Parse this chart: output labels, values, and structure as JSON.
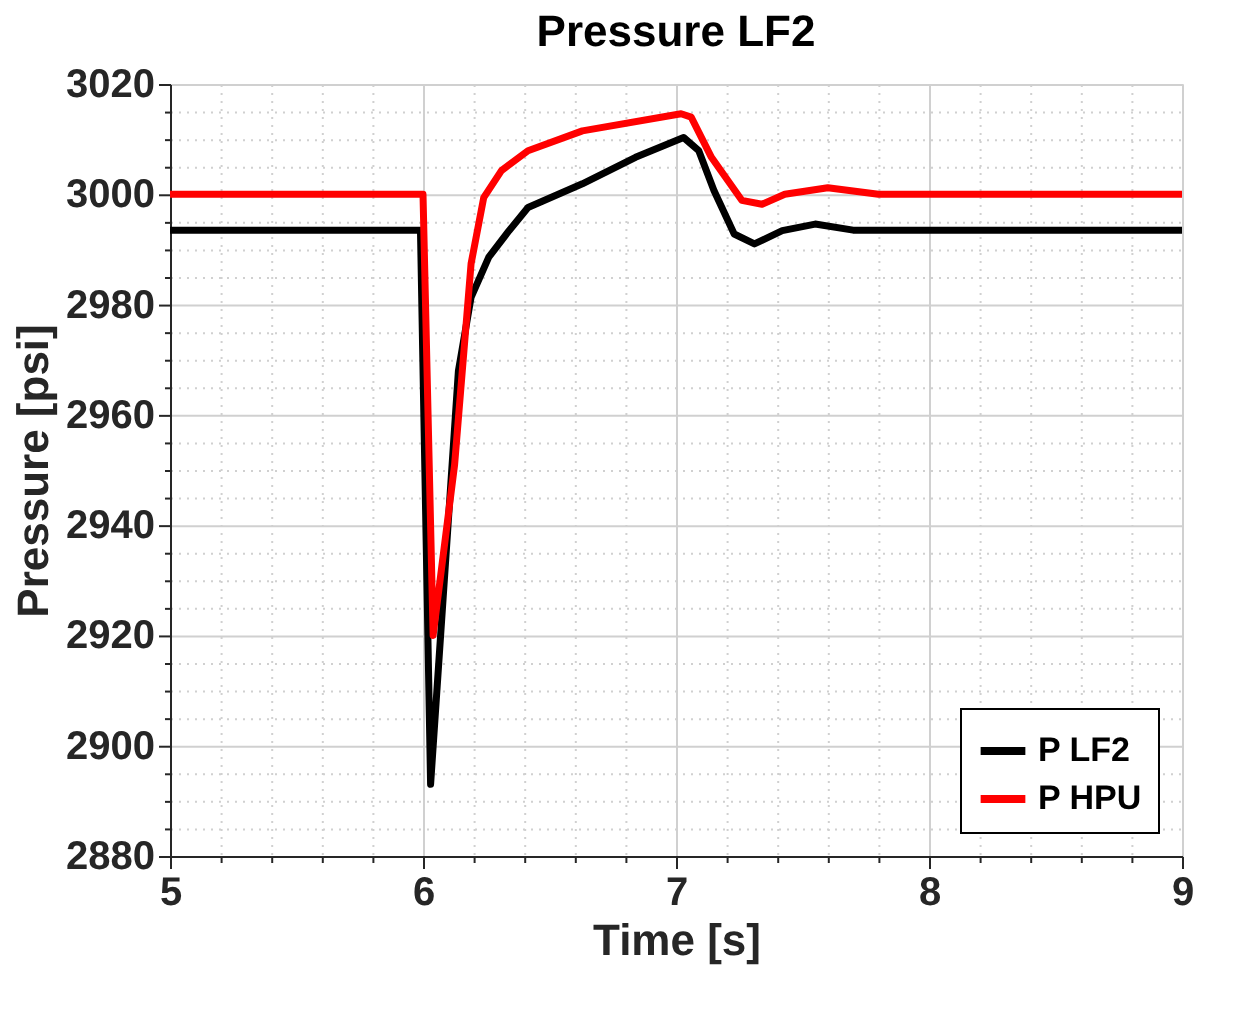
{
  "chart_data": {
    "type": "line",
    "title": "Pressure LF2",
    "xlabel": "Time [s]",
    "ylabel": "Pressure [psi]",
    "xlim": [
      5,
      9
    ],
    "ylim": [
      2880,
      3020
    ],
    "xticks": [
      5,
      {
        "value": 5.2,
        "label": null
      },
      {
        "value": 5.4,
        "label": null
      },
      {
        "value": 5.6,
        "label": null
      },
      {
        "value": 5.8,
        "label": null
      },
      6,
      {
        "value": 6.2,
        "label": null
      },
      {
        "value": 6.4,
        "label": null
      },
      {
        "value": 6.6,
        "label": null
      },
      {
        "value": 6.8,
        "label": null
      },
      7,
      {
        "value": 7.2,
        "label": null
      },
      {
        "value": 7.4,
        "label": null
      },
      {
        "value": 7.6,
        "label": null
      },
      {
        "value": 7.8,
        "label": null
      },
      8,
      {
        "value": 8.2,
        "label": null
      },
      {
        "value": 8.4,
        "label": null
      },
      {
        "value": 8.6,
        "label": null
      },
      {
        "value": 8.8,
        "label": null
      },
      9
    ],
    "yticks": [
      2880,
      {
        "value": 2885,
        "label": null
      },
      {
        "value": 2890,
        "label": null
      },
      {
        "value": 2895,
        "label": null
      },
      2900,
      {
        "value": 2905,
        "label": null
      },
      {
        "value": 2910,
        "label": null
      },
      {
        "value": 2915,
        "label": null
      },
      2920,
      {
        "value": 2925,
        "label": null
      },
      {
        "value": 2930,
        "label": null
      },
      {
        "value": 2935,
        "label": null
      },
      2940,
      {
        "value": 2945,
        "label": null
      },
      {
        "value": 2950,
        "label": null
      },
      {
        "value": 2955,
        "label": null
      },
      2960,
      {
        "value": 2965,
        "label": null
      },
      {
        "value": 2970,
        "label": null
      },
      {
        "value": 2975,
        "label": null
      },
      2980,
      {
        "value": 2985,
        "label": null
      },
      {
        "value": 2990,
        "label": null
      },
      {
        "value": 2995,
        "label": null
      },
      3000,
      {
        "value": 3005,
        "label": null
      },
      {
        "value": 3010,
        "label": null
      },
      {
        "value": 3015,
        "label": null
      },
      3020
    ],
    "grid": true,
    "legend": "bottom right",
    "line_style": "solid",
    "marker": "none",
    "series": [
      {
        "name": "P LF2",
        "color": "#000000",
        "x": [
          5,
          5.99,
          6.03,
          6.14,
          6.19,
          6.26,
          6.34,
          6.415,
          6.63,
          6.84,
          7.03,
          7.09,
          7.15,
          7.23,
          7.31,
          7.42,
          7.55,
          7.7,
          9
        ],
        "values": [
          2993.5,
          2993.5,
          2893,
          2968,
          2981.3,
          2988.6,
          2993.4,
          2997.6,
          3001.9,
          3006.7,
          3010.3,
          3007.9,
          3000.7,
          2992.8,
          2991,
          2993.4,
          2994.6,
          2993.5,
          2993.5
        ]
      },
      {
        "name": "P HPU",
        "color": "#ff0000",
        "x": [
          5,
          6.0,
          6.04,
          6.125,
          6.19,
          6.24,
          6.31,
          6.415,
          6.63,
          7.02,
          7.06,
          7.14,
          7.26,
          7.34,
          7.43,
          7.6,
          7.8,
          9
        ],
        "values": [
          3000,
          3000,
          2920,
          2951,
          2987.4,
          2999.4,
          3004.3,
          3007.9,
          3011.5,
          3014.6,
          3014,
          3006.7,
          2998.9,
          2998.2,
          3000,
          3001.2,
          3000,
          3000
        ]
      }
    ]
  }
}
